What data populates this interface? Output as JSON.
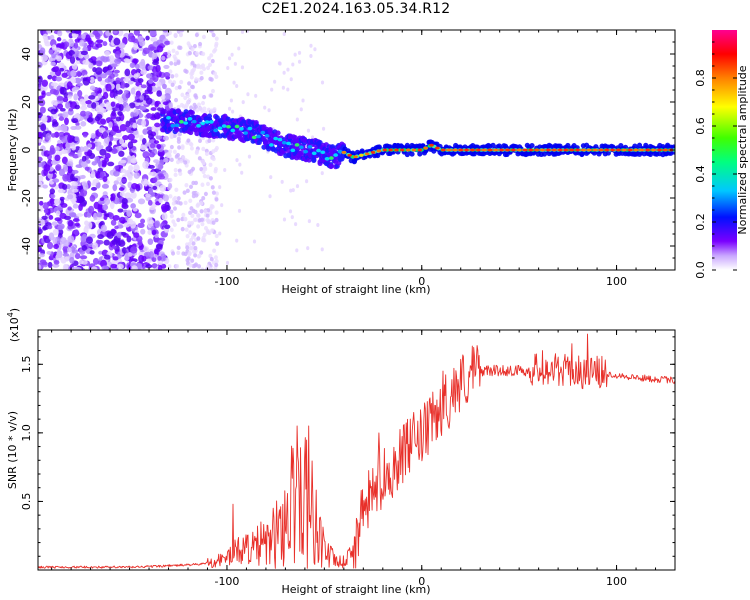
{
  "title": "C2E1.2024.163.05.34.R12",
  "chart_data": [
    {
      "type": "heatmap",
      "title": "C2E1.2024.163.05.34.R12",
      "xlabel": "Height of straight line (km)",
      "ylabel": "Frequency (Hz)",
      "xlim": [
        -197,
        130
      ],
      "ylim": [
        -50,
        50
      ],
      "x_ticks": [
        -100,
        0,
        100
      ],
      "y_ticks": [
        -40,
        -20,
        0,
        20,
        40
      ],
      "colorbar": {
        "label": "Normalized spectral amplitude",
        "range": [
          0,
          1
        ],
        "ticks": [
          "0.0",
          "0.2",
          "0.4",
          "0.6",
          "0.8"
        ],
        "colors": [
          "#ffffff",
          "#7a00ff",
          "#0000ff",
          "#00ffff",
          "#00ff00",
          "#ffff00",
          "#ff8000",
          "#ff0000",
          "#ff00aa"
        ]
      },
      "ridge": {
        "x": [
          -133,
          -125,
          -115,
          -105,
          -95,
          -85,
          -75,
          -65,
          -55,
          -50,
          -45,
          -40,
          -35,
          -30,
          -25,
          -20,
          -15,
          -10,
          0,
          5,
          10,
          15,
          30,
          60,
          90,
          130
        ],
        "y": [
          12,
          12,
          11,
          10,
          9,
          7,
          3,
          1,
          0,
          -2,
          -3,
          -1,
          -3,
          -2,
          -1,
          0,
          0,
          0,
          0,
          2,
          0,
          0,
          0,
          0,
          0,
          0
        ]
      }
    },
    {
      "type": "line",
      "xlabel": "Height of straight line (km)",
      "ylabel": "SNR (10 * v/v)",
      "y_multiplier": "(x10",
      "y_multiplier_exp": "4",
      "y_multiplier_close": ")",
      "xlim": [
        -197,
        130
      ],
      "ylim": [
        0,
        1.75
      ],
      "x_ticks": [
        -100,
        0,
        100
      ],
      "y_ticks": [
        "0.5",
        "1.0",
        "1.5"
      ],
      "series_color": "#e8302a",
      "envelope": {
        "x": [
          -197,
          -150,
          -130,
          -115,
          -105,
          -98,
          -92,
          -85,
          -78,
          -72,
          -66,
          -62,
          -58,
          -54,
          -50,
          -45,
          -40,
          -35,
          -30,
          -25,
          -20,
          -15,
          -10,
          -5,
          0,
          5,
          10,
          15,
          20,
          25,
          30,
          40,
          50,
          60,
          70,
          80,
          90,
          100,
          110,
          120,
          130
        ],
        "y": [
          0.02,
          0.02,
          0.03,
          0.04,
          0.06,
          0.1,
          0.15,
          0.15,
          0.18,
          0.28,
          0.45,
          0.55,
          0.45,
          0.28,
          0.14,
          0.06,
          0.05,
          0.15,
          0.4,
          0.55,
          0.65,
          0.72,
          0.82,
          0.9,
          0.95,
          1.05,
          1.15,
          1.25,
          1.35,
          1.4,
          1.45,
          1.45,
          1.45,
          1.45,
          1.45,
          1.43,
          1.43,
          1.42,
          1.4,
          1.39,
          1.38
        ]
      },
      "spikes": [
        {
          "x": -97,
          "y": 0.48
        },
        {
          "x": -64,
          "y": 1.05
        },
        {
          "x": -58,
          "y": 1.05
        },
        {
          "x": -22,
          "y": 1.0
        },
        {
          "x": 11,
          "y": 1.45
        },
        {
          "x": 62,
          "y": 1.6
        },
        {
          "x": 77,
          "y": 1.65
        },
        {
          "x": 85,
          "y": 1.72
        }
      ]
    }
  ]
}
